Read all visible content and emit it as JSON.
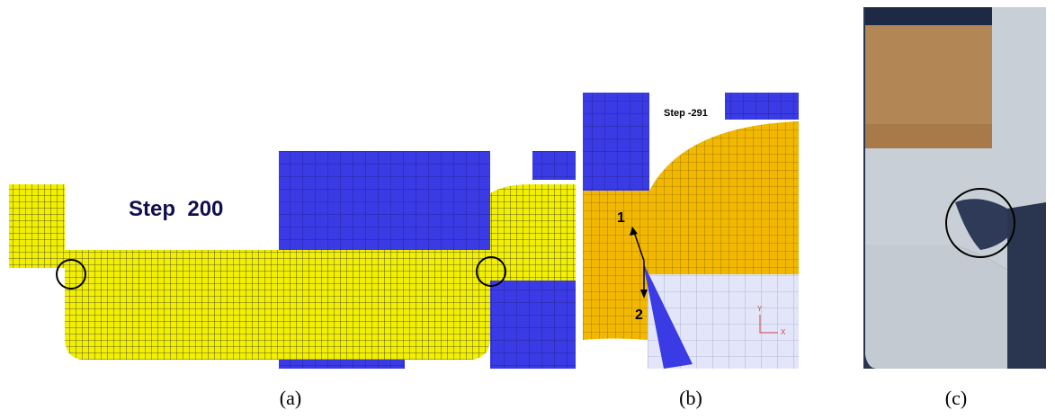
{
  "figure": {
    "panels": [
      {
        "label": "(a)",
        "annotation": "Step  200"
      },
      {
        "label": "(b)",
        "annotation": "Step -291",
        "markers": [
          "1",
          "2"
        ],
        "axes": [
          "Y",
          "X"
        ]
      },
      {
        "label": "(c)"
      }
    ]
  }
}
